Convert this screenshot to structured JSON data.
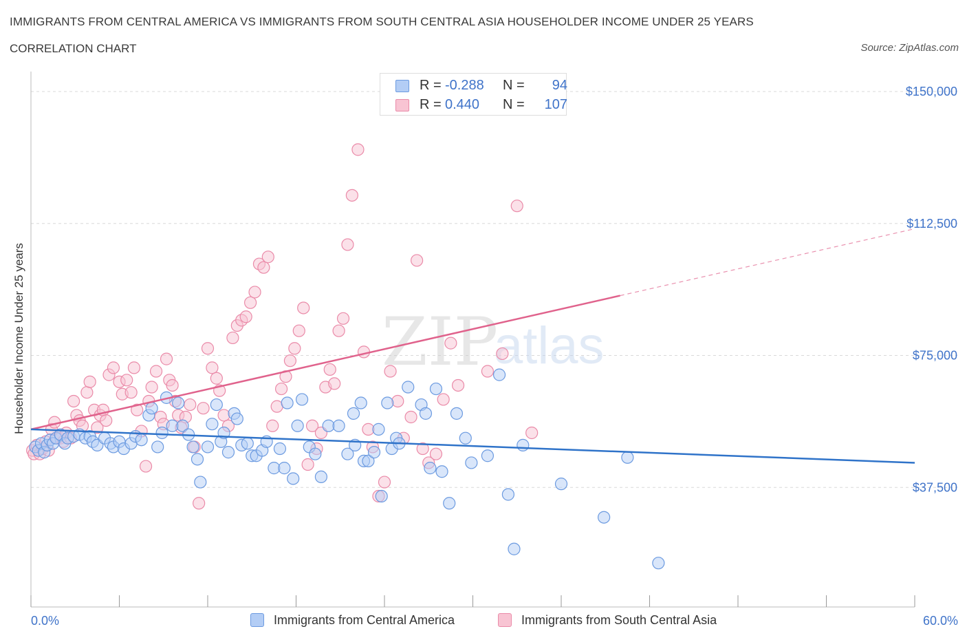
{
  "title": "IMMIGRANTS FROM CENTRAL AMERICA VS IMMIGRANTS FROM SOUTH CENTRAL ASIA HOUSEHOLDER INCOME UNDER 25 YEARS",
  "subtitle": "CORRELATION CHART",
  "source": "Source: ZipAtlas.com",
  "watermark": {
    "zip": "ZIP",
    "atlas": "atlas"
  },
  "colors": {
    "blue_fill": "#b3cdf5",
    "blue_stroke": "#6b9ae0",
    "blue_line": "#2f73c9",
    "pink_fill": "#f8c4d3",
    "pink_stroke": "#ea8aa8",
    "pink_line": "#e0628c",
    "axis_label": "#3f73c9",
    "grid": "#d8d8d8"
  },
  "legend_top": [
    {
      "swatch": "blue",
      "r_label": "R =",
      "r_value": "-0.288",
      "n_label": "N =",
      "n_value": "94"
    },
    {
      "swatch": "pink",
      "r_label": "R =",
      "r_value": "0.440",
      "n_label": "N =",
      "n_value": "107"
    }
  ],
  "chart_data": {
    "type": "scatter",
    "title": "IMMIGRANTS FROM CENTRAL AMERICA VS IMMIGRANTS FROM SOUTH CENTRAL ASIA HOUSEHOLDER INCOME UNDER 25 YEARS",
    "xlabel": "",
    "ylabel": "Householder Income Under 25 years",
    "xlim": [
      0,
      60
    ],
    "ylim": [
      0,
      150000
    ],
    "x_tick_labels": [
      {
        "value": 0,
        "label": "0.0%"
      },
      {
        "value": 60,
        "label": "60.0%"
      }
    ],
    "y_tick_labels": [
      {
        "value": 37500,
        "label": "$37,500"
      },
      {
        "value": 75000,
        "label": "$75,000"
      },
      {
        "value": 112500,
        "label": "$112,500"
      },
      {
        "value": 150000,
        "label": "$150,000"
      }
    ],
    "grid": true,
    "legend_position": "bottom",
    "series": [
      {
        "name": "Immigrants from Central America",
        "color": "blue",
        "R": -0.288,
        "N": 94,
        "trend": {
          "x0": 0,
          "y0": 54000,
          "x1": 60,
          "y1": 44500,
          "solid_until": 60
        },
        "points": [
          [
            0.3,
            49000
          ],
          [
            0.5,
            48000
          ],
          [
            0.7,
            50000
          ],
          [
            0.9,
            47500
          ],
          [
            1.1,
            49500
          ],
          [
            1.3,
            51000
          ],
          [
            1.5,
            50000
          ],
          [
            1.7,
            51500
          ],
          [
            2.0,
            52500
          ],
          [
            2.3,
            50000
          ],
          [
            2.5,
            51500
          ],
          [
            2.9,
            52000
          ],
          [
            3.3,
            52500
          ],
          [
            3.7,
            51500
          ],
          [
            4.0,
            52000
          ],
          [
            4.2,
            50500
          ],
          [
            4.5,
            49500
          ],
          [
            5.0,
            51500
          ],
          [
            5.4,
            50000
          ],
          [
            5.6,
            49000
          ],
          [
            6.0,
            50500
          ],
          [
            6.3,
            48500
          ],
          [
            6.8,
            50000
          ],
          [
            7.1,
            52000
          ],
          [
            7.5,
            51000
          ],
          [
            8.0,
            58000
          ],
          [
            8.2,
            60000
          ],
          [
            8.6,
            49000
          ],
          [
            8.9,
            53000
          ],
          [
            9.2,
            63000
          ],
          [
            9.6,
            55000
          ],
          [
            10.0,
            61500
          ],
          [
            10.3,
            55000
          ],
          [
            10.7,
            52500
          ],
          [
            11.0,
            49000
          ],
          [
            11.3,
            45500
          ],
          [
            11.5,
            39000
          ],
          [
            12.0,
            49000
          ],
          [
            12.3,
            55500
          ],
          [
            12.6,
            61000
          ],
          [
            12.9,
            50500
          ],
          [
            13.1,
            53000
          ],
          [
            13.4,
            47500
          ],
          [
            13.8,
            58500
          ],
          [
            14.0,
            57000
          ],
          [
            14.3,
            49500
          ],
          [
            14.7,
            50000
          ],
          [
            15.0,
            46500
          ],
          [
            15.3,
            46500
          ],
          [
            15.7,
            48000
          ],
          [
            16.0,
            50500
          ],
          [
            16.5,
            43000
          ],
          [
            16.9,
            48500
          ],
          [
            17.2,
            43000
          ],
          [
            17.4,
            61500
          ],
          [
            17.8,
            40000
          ],
          [
            18.1,
            55000
          ],
          [
            18.4,
            62500
          ],
          [
            18.9,
            49000
          ],
          [
            19.3,
            47000
          ],
          [
            19.7,
            40500
          ],
          [
            20.2,
            55000
          ],
          [
            20.9,
            55000
          ],
          [
            21.5,
            47000
          ],
          [
            21.9,
            58500
          ],
          [
            22.0,
            49500
          ],
          [
            22.4,
            61500
          ],
          [
            22.6,
            45000
          ],
          [
            22.9,
            45000
          ],
          [
            23.3,
            47500
          ],
          [
            23.6,
            54000
          ],
          [
            23.8,
            35000
          ],
          [
            24.2,
            61500
          ],
          [
            24.5,
            48500
          ],
          [
            24.8,
            51500
          ],
          [
            25.0,
            50000
          ],
          [
            25.6,
            66000
          ],
          [
            26.5,
            61000
          ],
          [
            26.8,
            58500
          ],
          [
            27.1,
            43000
          ],
          [
            27.5,
            65500
          ],
          [
            27.9,
            42000
          ],
          [
            28.4,
            33000
          ],
          [
            28.9,
            58500
          ],
          [
            29.5,
            51500
          ],
          [
            29.9,
            44500
          ],
          [
            31.0,
            46500
          ],
          [
            31.8,
            69500
          ],
          [
            32.4,
            35500
          ],
          [
            32.8,
            20000
          ],
          [
            33.4,
            49500
          ],
          [
            36.0,
            38500
          ],
          [
            38.9,
            29000
          ],
          [
            40.5,
            46000
          ],
          [
            42.6,
            16000
          ]
        ]
      },
      {
        "name": "Immigrants from South Central Asia",
        "color": "pink",
        "R": 0.44,
        "N": 107,
        "trend": {
          "x0": 0,
          "y0": 54000,
          "x1": 60,
          "y1": 111000,
          "solid_until": 40
        },
        "points": [
          [
            0.1,
            48000
          ],
          [
            0.2,
            47000
          ],
          [
            0.4,
            49500
          ],
          [
            0.6,
            47000
          ],
          [
            0.8,
            48500
          ],
          [
            1.0,
            50500
          ],
          [
            1.2,
            48000
          ],
          [
            1.4,
            54000
          ],
          [
            1.6,
            56000
          ],
          [
            1.8,
            51500
          ],
          [
            2.0,
            51500
          ],
          [
            2.2,
            50500
          ],
          [
            2.4,
            53000
          ],
          [
            2.7,
            51500
          ],
          [
            2.9,
            62000
          ],
          [
            3.1,
            58000
          ],
          [
            3.3,
            56500
          ],
          [
            3.5,
            55000
          ],
          [
            3.8,
            64500
          ],
          [
            4.0,
            67500
          ],
          [
            4.3,
            59500
          ],
          [
            4.5,
            54500
          ],
          [
            4.7,
            58000
          ],
          [
            4.9,
            59500
          ],
          [
            5.1,
            56500
          ],
          [
            5.3,
            69500
          ],
          [
            5.6,
            71500
          ],
          [
            6.0,
            67500
          ],
          [
            6.2,
            64000
          ],
          [
            6.5,
            68000
          ],
          [
            6.8,
            64500
          ],
          [
            7.0,
            71500
          ],
          [
            7.2,
            59500
          ],
          [
            7.5,
            53500
          ],
          [
            7.8,
            43500
          ],
          [
            8.0,
            62000
          ],
          [
            8.2,
            66000
          ],
          [
            8.5,
            70500
          ],
          [
            8.8,
            57500
          ],
          [
            9.0,
            55500
          ],
          [
            9.2,
            74000
          ],
          [
            9.4,
            68000
          ],
          [
            9.6,
            66500
          ],
          [
            9.8,
            62000
          ],
          [
            10.0,
            58000
          ],
          [
            10.2,
            54500
          ],
          [
            10.5,
            57500
          ],
          [
            10.8,
            61000
          ],
          [
            11.1,
            49000
          ],
          [
            11.4,
            33000
          ],
          [
            11.7,
            60000
          ],
          [
            12.0,
            77000
          ],
          [
            12.3,
            71500
          ],
          [
            12.6,
            68500
          ],
          [
            12.8,
            65000
          ],
          [
            13.1,
            58000
          ],
          [
            13.4,
            55000
          ],
          [
            13.7,
            80000
          ],
          [
            14.0,
            83500
          ],
          [
            14.3,
            85000
          ],
          [
            14.6,
            86000
          ],
          [
            14.9,
            90000
          ],
          [
            15.2,
            93000
          ],
          [
            15.5,
            101000
          ],
          [
            15.8,
            100000
          ],
          [
            16.1,
            103000
          ],
          [
            16.4,
            55000
          ],
          [
            16.7,
            60500
          ],
          [
            17.0,
            65500
          ],
          [
            17.3,
            69000
          ],
          [
            17.6,
            73500
          ],
          [
            17.9,
            77000
          ],
          [
            18.2,
            82000
          ],
          [
            18.5,
            88500
          ],
          [
            18.8,
            44000
          ],
          [
            19.1,
            55000
          ],
          [
            19.4,
            48500
          ],
          [
            19.7,
            53000
          ],
          [
            20.0,
            66000
          ],
          [
            20.3,
            71000
          ],
          [
            20.6,
            67000
          ],
          [
            20.9,
            82000
          ],
          [
            21.2,
            85500
          ],
          [
            21.5,
            106500
          ],
          [
            21.8,
            120500
          ],
          [
            22.2,
            133500
          ],
          [
            22.6,
            76000
          ],
          [
            22.9,
            54000
          ],
          [
            23.2,
            49000
          ],
          [
            23.6,
            35000
          ],
          [
            24.0,
            39000
          ],
          [
            24.4,
            70500
          ],
          [
            24.9,
            62000
          ],
          [
            25.3,
            51500
          ],
          [
            25.8,
            57500
          ],
          [
            26.2,
            102000
          ],
          [
            26.6,
            48500
          ],
          [
            27.0,
            44500
          ],
          [
            27.5,
            47000
          ],
          [
            28.0,
            62500
          ],
          [
            28.5,
            78500
          ],
          [
            29.0,
            66500
          ],
          [
            31.0,
            70500
          ],
          [
            32.0,
            75500
          ],
          [
            33.0,
            117500
          ],
          [
            34.0,
            53000
          ]
        ]
      }
    ]
  },
  "legend_bottom": [
    {
      "swatch": "blue",
      "label": "Immigrants from Central America"
    },
    {
      "swatch": "pink",
      "label": "Immigrants from South Central Asia"
    }
  ]
}
